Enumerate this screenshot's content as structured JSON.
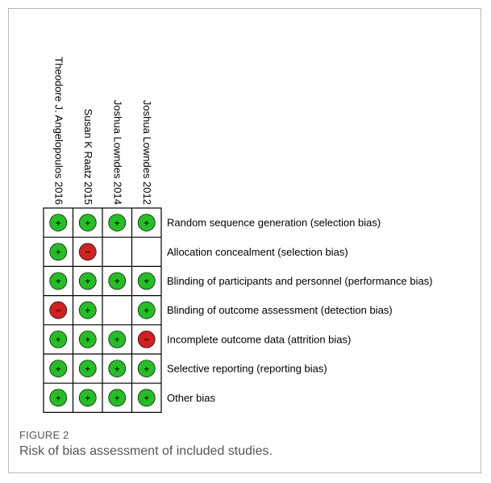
{
  "figure": {
    "label": "FIGURE 2",
    "caption": "Risk of bias assessment of included studies."
  },
  "chart_data": {
    "type": "table",
    "studies": [
      "Theodore J. Angelopoulos 2016",
      "Susan K Raatz 2015",
      "Joshua Lowndes 2014",
      "Joshua Lowndes 2012"
    ],
    "domains": [
      "Random sequence generation (selection bias)",
      "Allocation concealment (selection bias)",
      "Blinding of participants and personnel (performance bias)",
      "Blinding of outcome assessment (detection bias)",
      "Incomplete outcome data (attrition bias)",
      "Selective reporting (reporting bias)",
      "Other bias"
    ],
    "judgements": [
      [
        "low",
        "low",
        "low",
        "low"
      ],
      [
        "low",
        "high",
        "unclear",
        "unclear"
      ],
      [
        "low",
        "low",
        "low",
        "low"
      ],
      [
        "high",
        "low",
        "unclear",
        "low"
      ],
      [
        "low",
        "low",
        "low",
        "high"
      ],
      [
        "low",
        "low",
        "low",
        "low"
      ],
      [
        "low",
        "low",
        "low",
        "low"
      ]
    ],
    "colors": {
      "low": "#22c022",
      "high": "#d21f1f",
      "unclear": "#ffffff"
    },
    "symbols": {
      "low": "+",
      "high": "−",
      "unclear": ""
    }
  }
}
